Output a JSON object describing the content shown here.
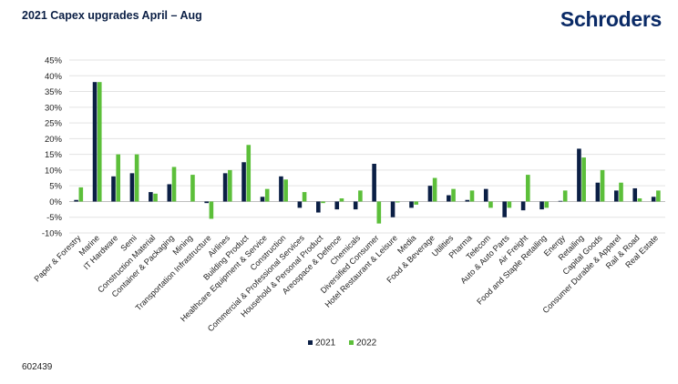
{
  "header": {
    "title": "2021 Capex upgrades April – Aug",
    "logo_text": "Schroders"
  },
  "footer": {
    "code": "602439"
  },
  "colors": {
    "series_2021": "#0b1f45",
    "series_2022": "#5cbf3a",
    "grid": "#e3e3e3",
    "axis": "#bfbfbf"
  },
  "chart_data": {
    "type": "bar",
    "title": "2021 Capex upgrades April – Aug",
    "xlabel": "",
    "ylabel": "",
    "ylim": [
      -10,
      45
    ],
    "yticks": [
      -10,
      -5,
      0,
      5,
      10,
      15,
      20,
      25,
      30,
      35,
      40,
      45
    ],
    "ytick_labels": [
      "-10%",
      "-5%",
      "0%",
      "5%",
      "10%",
      "15%",
      "20%",
      "25%",
      "30%",
      "35%",
      "40%",
      "45%"
    ],
    "grid": true,
    "legend_position": "bottom",
    "categories": [
      "Paper & Forestry",
      "Marine",
      "IT Hardware",
      "Semi",
      "Construction Material",
      "Container & Packaging",
      "Mining",
      "Transportation Infrastructure",
      "Airlines",
      "Building Product",
      "Healthcare Equipment & Service",
      "Construction",
      "Commercial & Professional Services",
      "Household & Personal Product",
      "Areospace & Defence",
      "Chemicals",
      "Diversified Consumer",
      "Hotel Restaurant & Leisure",
      "Media",
      "Food & Beverage",
      "Utilities",
      "Pharma",
      "Telecom",
      "Auto & Auto Parts",
      "Air Freight",
      "Food and Staple Retailing",
      "Energy",
      "Retailing",
      "Capital Goods",
      "Consumer Durable & Apparel",
      "Rail & Road",
      "Real Estate"
    ],
    "series": [
      {
        "name": "2021",
        "values": [
          0.5,
          38,
          8,
          9,
          3,
          5.5,
          0,
          -0.5,
          9,
          12.5,
          1.5,
          8,
          -2,
          -3.5,
          -2.5,
          -2.5,
          12,
          -5,
          -2,
          5,
          2,
          0.5,
          4,
          -5,
          -2.8,
          -2.5,
          0.2,
          16.8,
          6,
          3.5,
          4.2,
          1.5
        ]
      },
      {
        "name": "2022",
        "values": [
          4.5,
          38,
          15,
          15,
          2.5,
          11,
          8.5,
          -5.5,
          10,
          18,
          4,
          7,
          3,
          -0.5,
          1,
          3.5,
          -7,
          -0.3,
          -1,
          7.5,
          4,
          3.5,
          -2,
          -2,
          8.5,
          -2,
          3.5,
          14,
          10,
          6,
          1,
          3.5
        ]
      }
    ]
  }
}
